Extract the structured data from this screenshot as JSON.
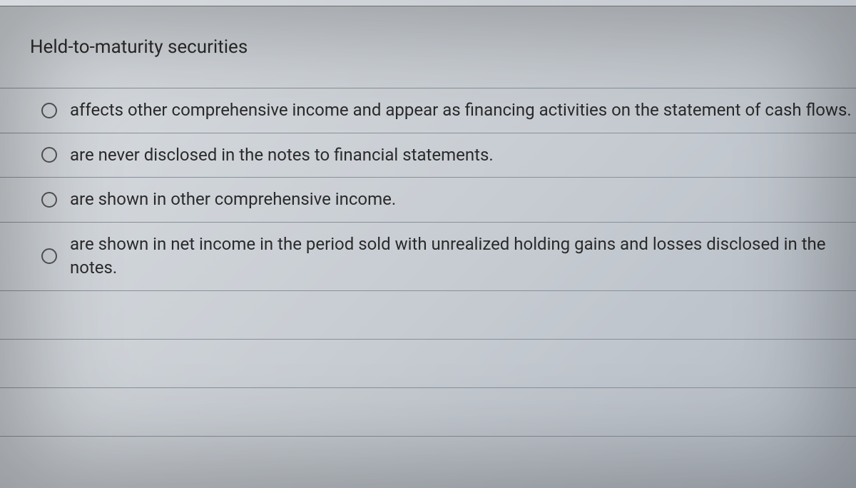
{
  "question": {
    "prompt": "Held-to-maturity securities",
    "options": [
      "affects other comprehensive income and appear as financing activities on the statement of cash flows.",
      "are never disclosed in the notes to financial statements.",
      "are shown in other comprehensive income.",
      "are shown in net income in the period sold with unrealized holding gains and losses disclosed in the notes."
    ]
  },
  "style": {
    "text_color": "#2a2a2a",
    "border_color": "#8a9099",
    "radio_border": "#555555",
    "background_gradient": [
      "#d8dce0",
      "#c8cdd3",
      "#b5bcc5"
    ],
    "prompt_fontsize": 26,
    "option_fontsize": 24,
    "empty_trailing_rows": 3
  }
}
